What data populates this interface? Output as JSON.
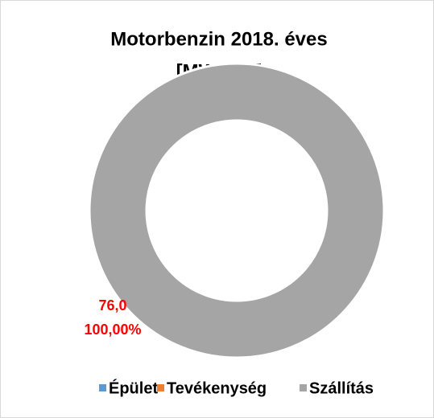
{
  "chart_data": {
    "type": "donut",
    "title": [
      "Motorbenzin 2018. éves",
      "[MWh/év]"
    ],
    "categories": [
      "Épület",
      "Tevékenység",
      "Szállítás"
    ],
    "values": [
      0,
      0,
      76.0
    ],
    "value_labels": [
      null,
      null,
      "76,0"
    ],
    "percentages": [
      0,
      0,
      100
    ],
    "percentage_labels": [
      null,
      null,
      "100,00%"
    ],
    "colors": [
      "#5b9bd5",
      "#ed7d31",
      "#a5a5a5"
    ],
    "legend": "bottom"
  }
}
